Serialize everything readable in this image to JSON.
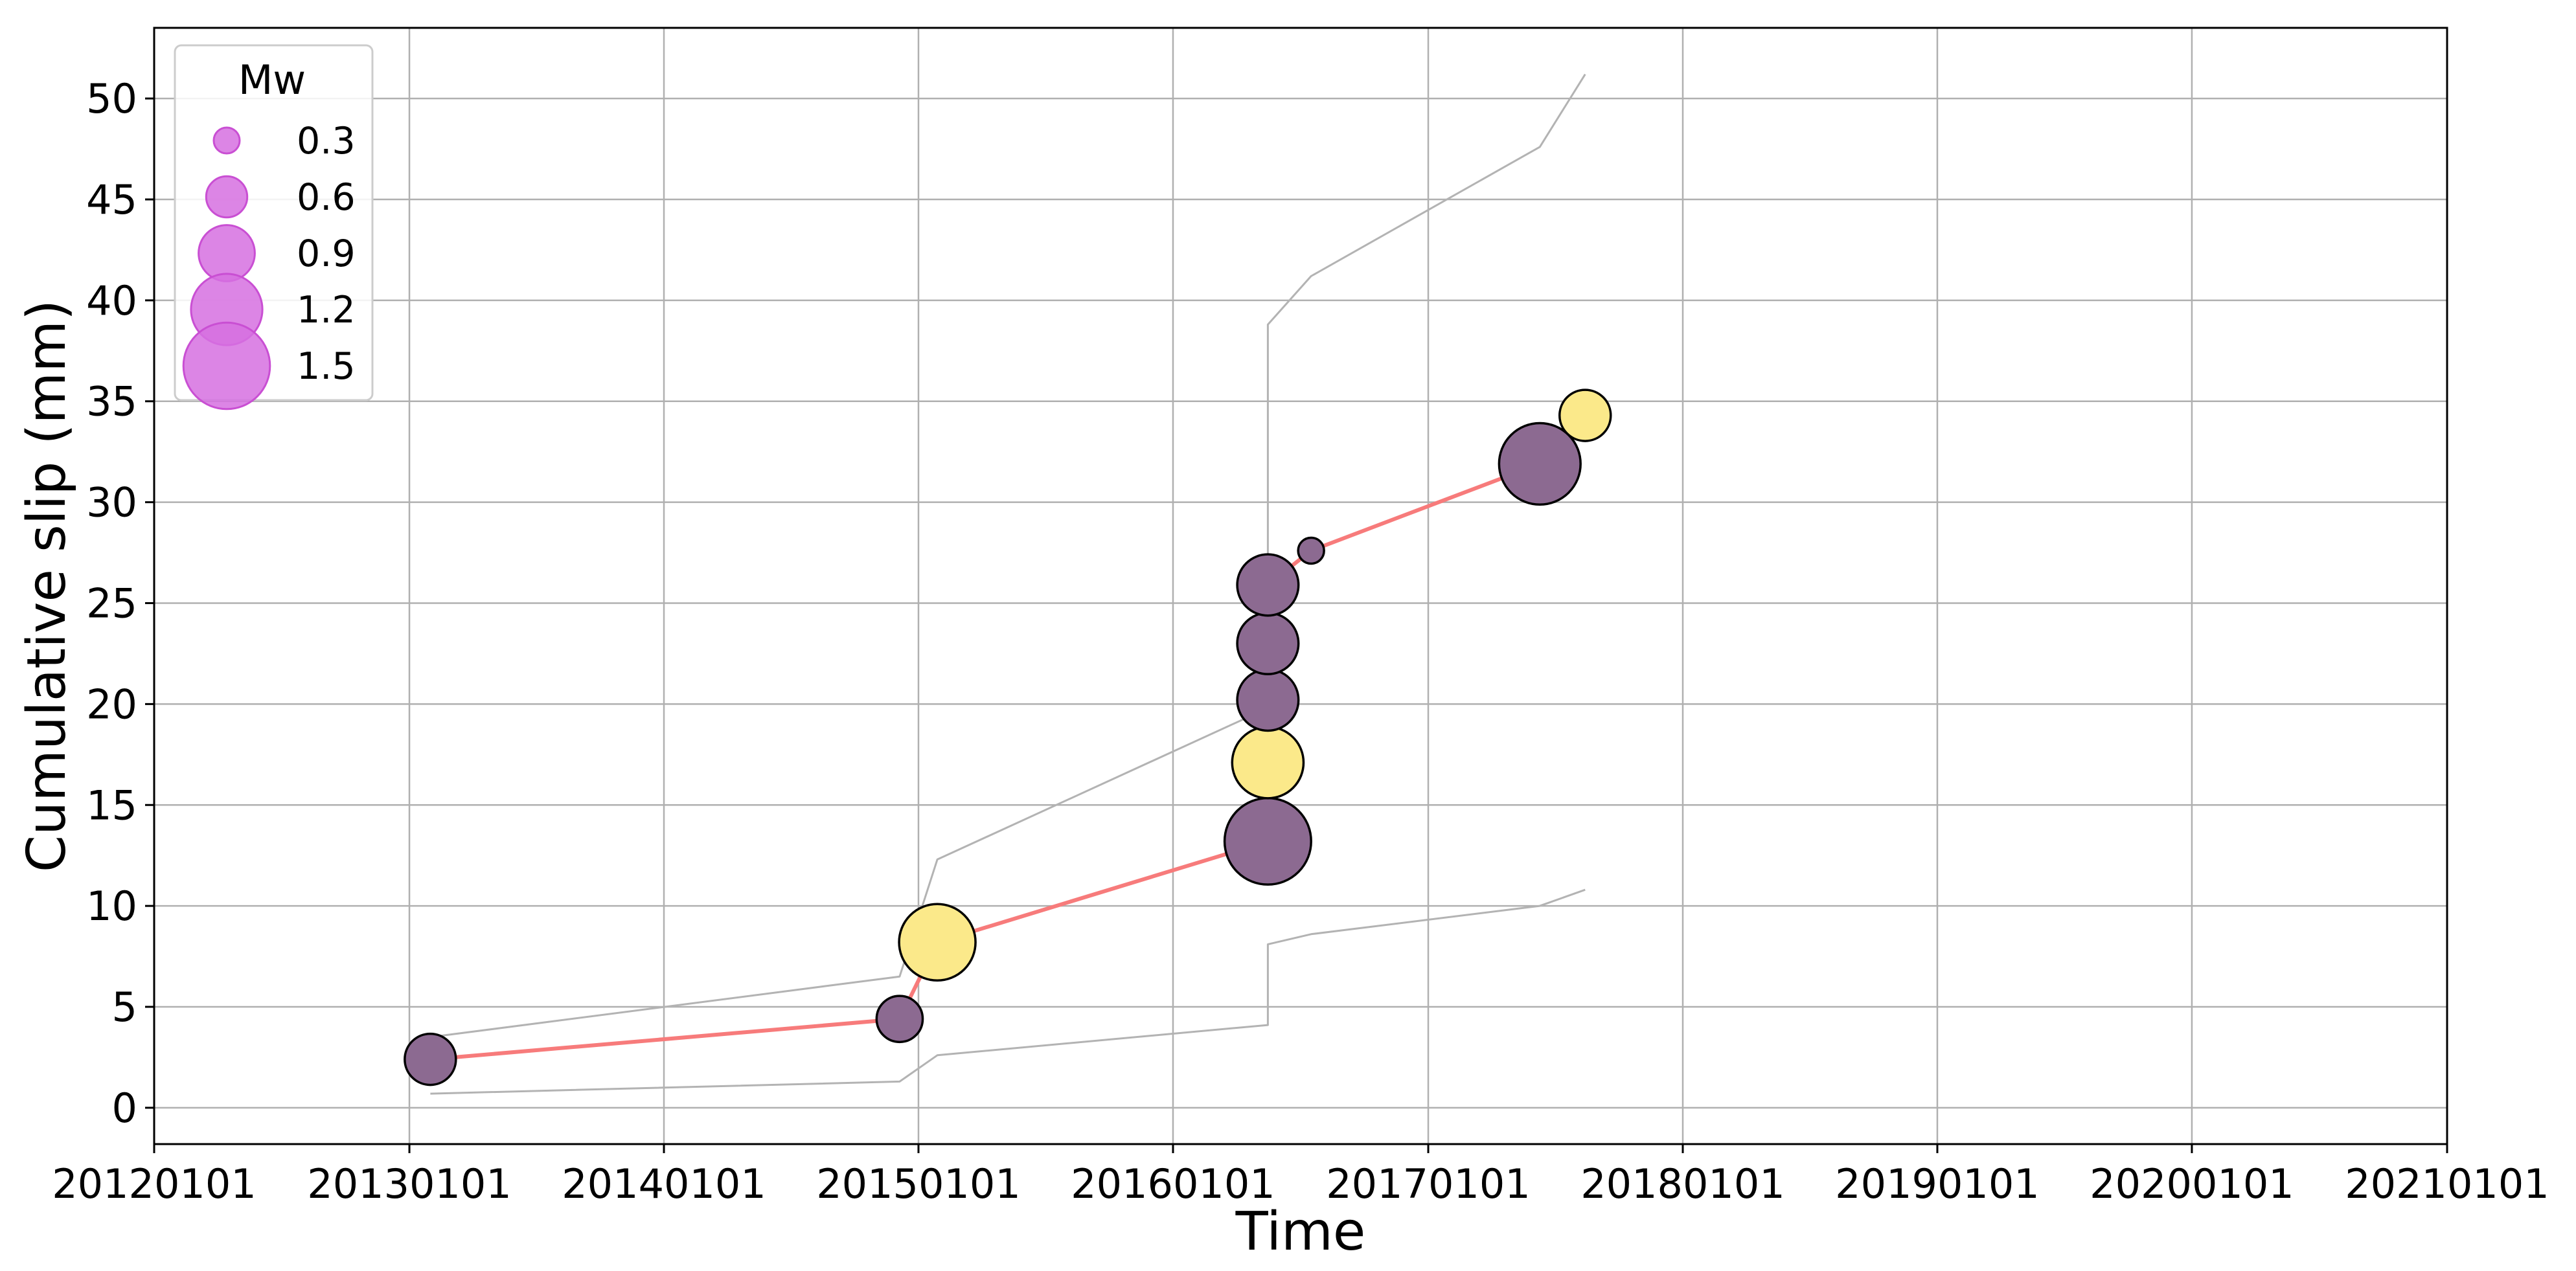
{
  "chart_data": {
    "type": "scatter",
    "xlabel": "Time",
    "ylabel": "Cumulative slip (mm)",
    "x_ticks": [
      "20120101",
      "20130101",
      "20140101",
      "20150101",
      "20160101",
      "20170101",
      "20180101",
      "20190101",
      "20200101",
      "20210101"
    ],
    "y_ticks": [
      0,
      5,
      10,
      15,
      20,
      25,
      30,
      35,
      40,
      45,
      50
    ],
    "xlim": [
      "2012-01-01",
      "2021-01-01"
    ],
    "ylim": [
      -1.8,
      53.5
    ],
    "grid": true,
    "legend": {
      "title": "Mw",
      "placement": "top-left",
      "marker_color": "#d670e0",
      "entries": [
        "0.3",
        "0.6",
        "0.9",
        "1.2",
        "1.5"
      ],
      "magnitudes": [
        0.3,
        0.6,
        0.9,
        1.2,
        1.5
      ]
    },
    "series": [
      {
        "role": "events",
        "line_color": "#f77b7b",
        "points": [
          {
            "x": "2013-01-31",
            "y": 2.4,
            "mw": 0.8,
            "color": "#8c6a91"
          },
          {
            "x": "2014-12-05",
            "y": 4.4,
            "mw": 0.7,
            "color": "#8c6a91"
          },
          {
            "x": "2015-01-28",
            "y": 8.2,
            "mw": 1.3,
            "color": "#fbe98a"
          },
          {
            "x": "2016-05-16",
            "y": 13.2,
            "mw": 1.5,
            "color": "#8c6a91"
          },
          {
            "x": "2016-05-16",
            "y": 17.1,
            "mw": 1.2,
            "color": "#fbe98a"
          },
          {
            "x": "2016-05-16",
            "y": 20.2,
            "mw": 1.0,
            "color": "#8c6a91"
          },
          {
            "x": "2016-05-16",
            "y": 23.0,
            "mw": 1.0,
            "color": "#8c6a91"
          },
          {
            "x": "2016-05-16",
            "y": 25.9,
            "mw": 1.0,
            "color": "#8c6a91"
          },
          {
            "x": "2016-07-17",
            "y": 27.6,
            "mw": 0.3,
            "color": "#8c6a91"
          },
          {
            "x": "2017-06-10",
            "y": 31.9,
            "mw": 1.4,
            "color": "#8c6a91"
          },
          {
            "x": "2017-08-14",
            "y": 34.3,
            "mw": 0.8,
            "color": "#fbe98a"
          }
        ]
      },
      {
        "role": "upper-bound",
        "line_color": "#b3b3b3",
        "points": [
          {
            "x": "2013-01-31",
            "y": 3.5
          },
          {
            "x": "2014-12-05",
            "y": 6.5
          },
          {
            "x": "2015-01-28",
            "y": 12.3
          },
          {
            "x": "2016-05-16",
            "y": 19.8
          },
          {
            "x": "2016-05-16",
            "y": 38.8
          },
          {
            "x": "2016-07-17",
            "y": 41.2
          },
          {
            "x": "2017-06-10",
            "y": 47.6
          },
          {
            "x": "2017-08-14",
            "y": 51.2
          }
        ]
      },
      {
        "role": "lower-bound",
        "line_color": "#b3b3b3",
        "points": [
          {
            "x": "2013-01-31",
            "y": 0.7
          },
          {
            "x": "2014-12-05",
            "y": 1.3
          },
          {
            "x": "2015-01-28",
            "y": 2.6
          },
          {
            "x": "2016-05-16",
            "y": 4.1
          },
          {
            "x": "2016-05-16",
            "y": 8.1
          },
          {
            "x": "2016-07-17",
            "y": 8.6
          },
          {
            "x": "2017-06-10",
            "y": 10.0
          },
          {
            "x": "2017-08-14",
            "y": 10.8
          }
        ]
      }
    ]
  }
}
